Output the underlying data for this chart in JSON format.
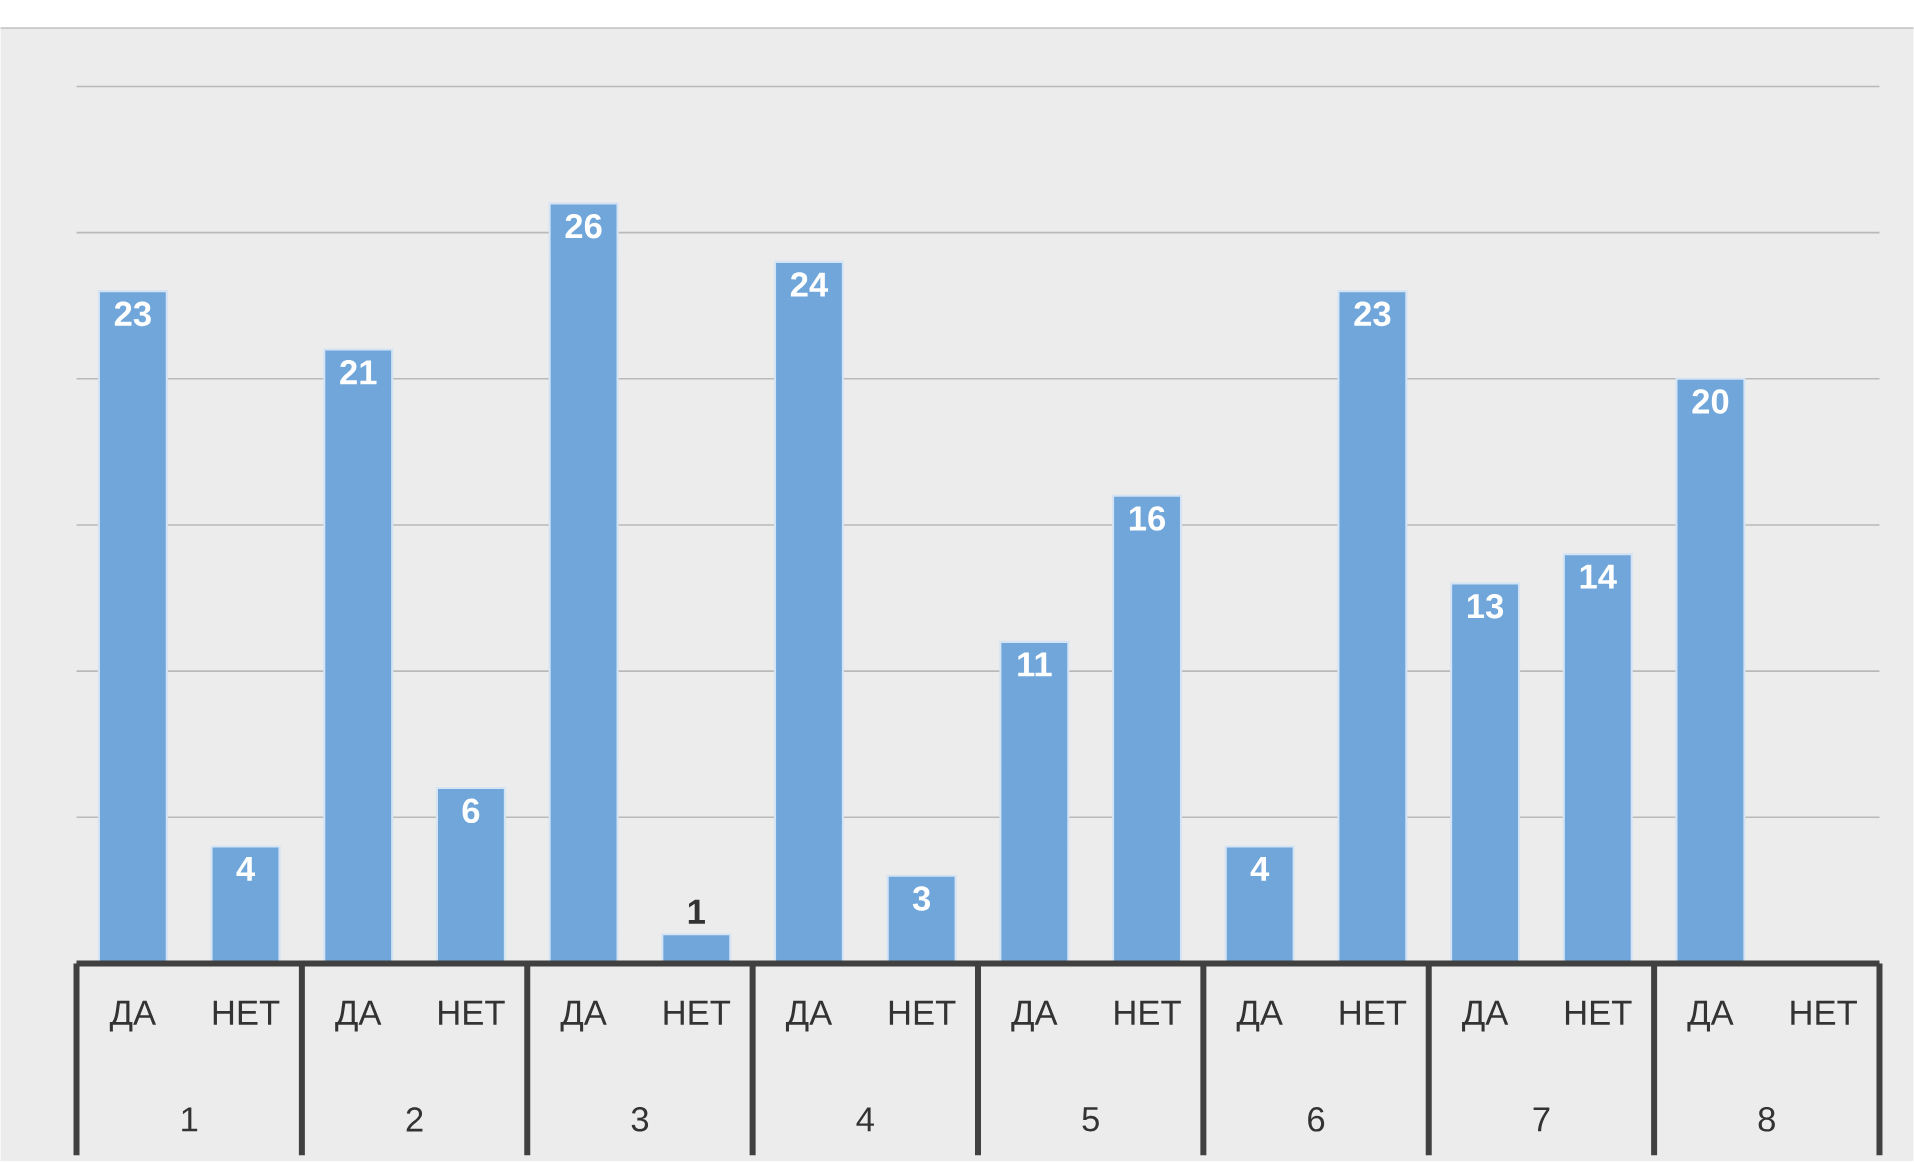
{
  "chart_data": {
    "type": "bar",
    "categories": [
      "ДА",
      "НЕТ",
      "ДА",
      "НЕТ",
      "ДА",
      "НЕТ",
      "ДА",
      "НЕТ",
      "ДА",
      "НЕТ",
      "ДА",
      "НЕТ",
      "ДА",
      "НЕТ",
      "ДА",
      "НЕТ"
    ],
    "values": [
      23,
      4,
      21,
      6,
      26,
      1,
      24,
      3,
      11,
      16,
      4,
      23,
      13,
      14,
      20,
      null
    ],
    "color": "#70a6da",
    "ylim": [
      0,
      32
    ],
    "yticks": [
      {
        "value": 0,
        "label": null
      },
      {
        "value": 5,
        "label": null
      },
      {
        "value": 10,
        "label": null
      },
      {
        "value": 15,
        "label": null
      },
      {
        "value": 20,
        "label": null
      },
      {
        "value": 25,
        "label": null
      },
      {
        "value": 30,
        "label": null
      }
    ],
    "grid": "y",
    "tick_labels": "x",
    "data_labels": true,
    "annotations": [
      "1",
      "2",
      "3",
      "4",
      "5",
      "6",
      "7",
      "8"
    ]
  }
}
